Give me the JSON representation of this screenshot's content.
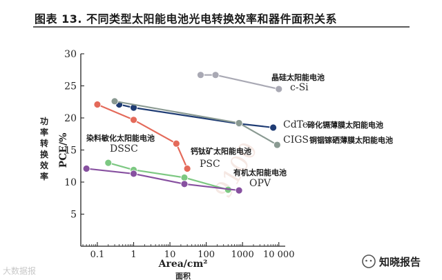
{
  "title": "图表 13. 不同类型太阳能电池光电转换效率和器件面积关系",
  "watermarks": {
    "left": "大数据报",
    "right": "知晓报告",
    "background": "9100"
  },
  "chart_data": {
    "type": "line",
    "x_scale": "log",
    "xlim": [
      0.035,
      15000
    ],
    "ylim": [
      0,
      30
    ],
    "x_ticks": [
      {
        "value": 0.1,
        "label": "0.1"
      },
      {
        "value": 1,
        "label": "1"
      },
      {
        "value": 10,
        "label": "10"
      },
      {
        "value": 100,
        "label": "100"
      },
      {
        "value": 1000,
        "label": "1000"
      },
      {
        "value": 10000,
        "label": "10 000"
      }
    ],
    "y_ticks": [
      {
        "value": 5,
        "label": "5"
      },
      {
        "value": 10,
        "label": "10"
      },
      {
        "value": 15,
        "label": "15"
      },
      {
        "value": 20,
        "label": "20"
      },
      {
        "value": 25,
        "label": "25"
      },
      {
        "value": 30,
        "label": "30"
      }
    ],
    "xlabel": "Area/cm²",
    "xlabel_cn": "面积",
    "ylabel": "PCE/%",
    "ylabel_cn": "功率转换效率",
    "grid": false,
    "series": [
      {
        "name": "c-Si",
        "label_cn": "晶硅太阳能电池",
        "color": "#a9a9b4",
        "points": [
          [
            70,
            26.7
          ],
          [
            180,
            26.7
          ],
          [
            10000,
            24.5
          ]
        ]
      },
      {
        "name": "CdTe",
        "label_cn": "碲化镉薄膜太阳能电池",
        "color": "#1f3c74",
        "points": [
          [
            0.4,
            22.1
          ],
          [
            1,
            21.6
          ],
          [
            800,
            19.1
          ],
          [
            7000,
            18.5
          ]
        ]
      },
      {
        "name": "CIGS",
        "label_cn": "铜铟镓硒薄膜太阳能电池",
        "color": "#8a9a92",
        "points": [
          [
            0.3,
            22.6
          ],
          [
            800,
            19.2
          ],
          [
            9000,
            15.8
          ]
        ]
      },
      {
        "name": "PSC",
        "label_cn": "钙钛矿太阳能电池",
        "color": "#e46a5a",
        "points": [
          [
            0.1,
            22.1
          ],
          [
            1,
            19.7
          ],
          [
            15,
            16.0
          ],
          [
            30,
            12.1
          ]
        ]
      },
      {
        "name": "DSSC",
        "label_cn": "染料敏化太阳能电池",
        "color": "#7dc882",
        "points": [
          [
            0.2,
            13.0
          ],
          [
            1,
            11.9
          ],
          [
            25,
            10.7
          ],
          [
            400,
            8.8
          ]
        ]
      },
      {
        "name": "OPV",
        "label_cn": "有机太阳能电池",
        "color": "#8750a0",
        "points": [
          [
            0.05,
            12.1
          ],
          [
            1,
            11.3
          ],
          [
            25,
            9.7
          ],
          [
            800,
            8.7
          ]
        ]
      }
    ]
  }
}
